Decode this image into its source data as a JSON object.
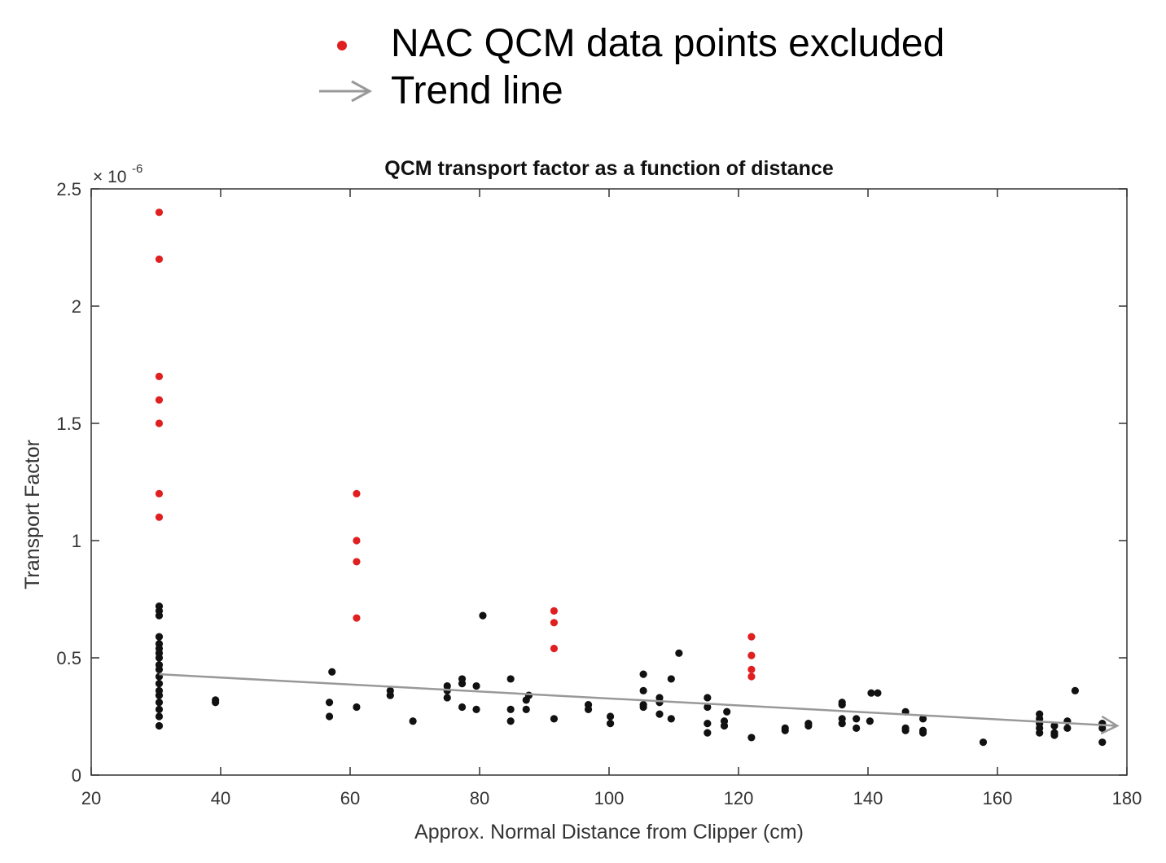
{
  "legend": {
    "items": [
      {
        "label": "NAC QCM data points excluded",
        "marker": "dot",
        "color": "#e02020"
      },
      {
        "label": "Trend line",
        "marker": "arrow",
        "color": "#999999"
      }
    ]
  },
  "chart_data": {
    "type": "scatter",
    "title": "QCM transport factor as a function of distance",
    "xlabel": "Approx. Normal Distance from Clipper (cm)",
    "ylabel": "Transport Factor",
    "y_exponent_label": "× 10",
    "y_exponent_power": "-6",
    "xlim": [
      20,
      180
    ],
    "ylim": [
      0,
      2.5
    ],
    "xticks": [
      20,
      40,
      60,
      80,
      100,
      120,
      140,
      160,
      180
    ],
    "yticks": [
      0,
      0.5,
      1,
      1.5,
      2,
      2.5
    ],
    "ytick_labels": [
      "0",
      "0.5",
      "1",
      "1.5",
      "2",
      "2.5"
    ],
    "grid": false,
    "colors": {
      "included": "#111111",
      "excluded": "#e02020",
      "trend": "#999999",
      "axis": "#333333"
    },
    "series": [
      {
        "name": "Included QCM data points",
        "color": "#111111",
        "points": [
          [
            30.5,
            0.21
          ],
          [
            30.5,
            0.25
          ],
          [
            30.5,
            0.28
          ],
          [
            30.5,
            0.31
          ],
          [
            30.5,
            0.34
          ],
          [
            30.5,
            0.36
          ],
          [
            30.5,
            0.39
          ],
          [
            30.5,
            0.42
          ],
          [
            30.5,
            0.45
          ],
          [
            30.5,
            0.47
          ],
          [
            30.5,
            0.5
          ],
          [
            30.5,
            0.52
          ],
          [
            30.5,
            0.54
          ],
          [
            30.5,
            0.56
          ],
          [
            30.5,
            0.59
          ],
          [
            30.5,
            0.68
          ],
          [
            30.5,
            0.7
          ],
          [
            30.5,
            0.72
          ],
          [
            39.2,
            0.31
          ],
          [
            39.2,
            0.32
          ],
          [
            56.8,
            0.25
          ],
          [
            56.8,
            0.31
          ],
          [
            57.2,
            0.44
          ],
          [
            61.0,
            0.29
          ],
          [
            66.2,
            0.34
          ],
          [
            66.2,
            0.36
          ],
          [
            69.7,
            0.23
          ],
          [
            75.0,
            0.33
          ],
          [
            75.0,
            0.36
          ],
          [
            75.0,
            0.38
          ],
          [
            77.3,
            0.29
          ],
          [
            77.3,
            0.39
          ],
          [
            77.3,
            0.41
          ],
          [
            79.5,
            0.28
          ],
          [
            79.5,
            0.38
          ],
          [
            80.5,
            0.68
          ],
          [
            84.8,
            0.23
          ],
          [
            84.8,
            0.28
          ],
          [
            84.8,
            0.41
          ],
          [
            87.2,
            0.28
          ],
          [
            87.2,
            0.32
          ],
          [
            87.6,
            0.34
          ],
          [
            91.5,
            0.24
          ],
          [
            96.8,
            0.28
          ],
          [
            96.8,
            0.3
          ],
          [
            100.2,
            0.22
          ],
          [
            100.2,
            0.25
          ],
          [
            105.3,
            0.29
          ],
          [
            105.3,
            0.3
          ],
          [
            105.3,
            0.36
          ],
          [
            105.3,
            0.43
          ],
          [
            107.8,
            0.26
          ],
          [
            107.8,
            0.31
          ],
          [
            107.8,
            0.33
          ],
          [
            109.6,
            0.24
          ],
          [
            109.6,
            0.41
          ],
          [
            110.8,
            0.52
          ],
          [
            115.2,
            0.18
          ],
          [
            115.2,
            0.22
          ],
          [
            115.2,
            0.29
          ],
          [
            115.2,
            0.33
          ],
          [
            117.8,
            0.21
          ],
          [
            117.8,
            0.23
          ],
          [
            118.2,
            0.27
          ],
          [
            122.0,
            0.16
          ],
          [
            127.2,
            0.19
          ],
          [
            127.2,
            0.2
          ],
          [
            130.8,
            0.21
          ],
          [
            130.8,
            0.22
          ],
          [
            136.0,
            0.22
          ],
          [
            136.0,
            0.24
          ],
          [
            136.0,
            0.3
          ],
          [
            136.0,
            0.31
          ],
          [
            138.2,
            0.2
          ],
          [
            138.2,
            0.24
          ],
          [
            140.3,
            0.23
          ],
          [
            140.5,
            0.35
          ],
          [
            141.5,
            0.35
          ],
          [
            145.8,
            0.19
          ],
          [
            145.8,
            0.2
          ],
          [
            145.8,
            0.27
          ],
          [
            148.5,
            0.18
          ],
          [
            148.5,
            0.19
          ],
          [
            148.5,
            0.24
          ],
          [
            157.8,
            0.14
          ],
          [
            166.5,
            0.18
          ],
          [
            166.5,
            0.2
          ],
          [
            166.5,
            0.22
          ],
          [
            166.5,
            0.24
          ],
          [
            166.5,
            0.26
          ],
          [
            168.8,
            0.17
          ],
          [
            168.8,
            0.18
          ],
          [
            168.8,
            0.21
          ],
          [
            170.8,
            0.2
          ],
          [
            170.8,
            0.23
          ],
          [
            172.0,
            0.36
          ],
          [
            176.2,
            0.14
          ],
          [
            176.2,
            0.2
          ],
          [
            176.2,
            0.22
          ]
        ]
      },
      {
        "name": "NAC QCM data points excluded",
        "color": "#e02020",
        "points": [
          [
            30.5,
            2.4
          ],
          [
            30.5,
            2.2
          ],
          [
            30.5,
            1.7
          ],
          [
            30.5,
            1.6
          ],
          [
            30.5,
            1.5
          ],
          [
            30.5,
            1.2
          ],
          [
            30.5,
            1.1
          ],
          [
            61.0,
            1.2
          ],
          [
            61.0,
            1.0
          ],
          [
            61.0,
            0.91
          ],
          [
            61.0,
            0.67
          ],
          [
            91.5,
            0.7
          ],
          [
            91.5,
            0.65
          ],
          [
            91.5,
            0.54
          ],
          [
            122.0,
            0.59
          ],
          [
            122.0,
            0.51
          ],
          [
            122.0,
            0.45
          ],
          [
            122.0,
            0.42
          ]
        ]
      }
    ],
    "trend_line": {
      "name": "Trend line",
      "color": "#999999",
      "start": [
        30.5,
        0.43
      ],
      "end": [
        178.5,
        0.21
      ]
    }
  }
}
